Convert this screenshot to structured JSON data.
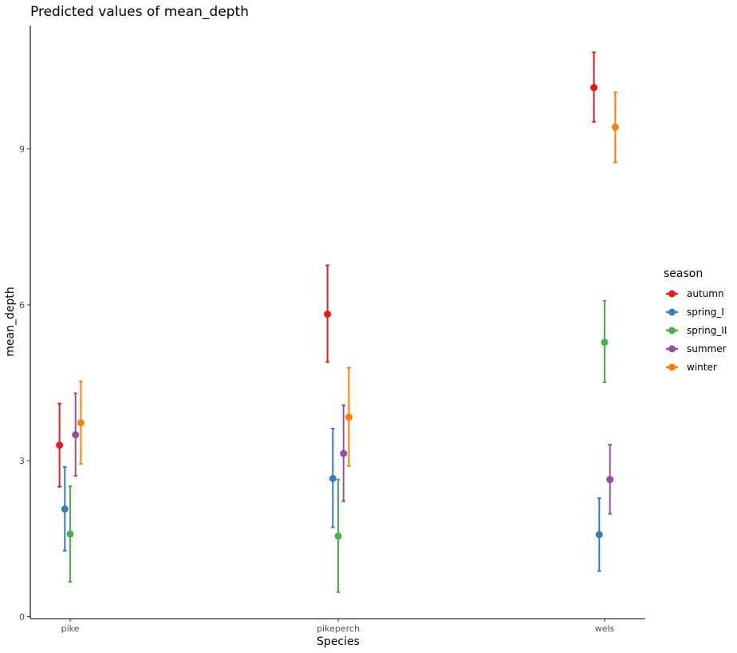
{
  "chart_data": {
    "type": "scatter",
    "subtype": "point-range (point estimates with error bars)",
    "title": "Predicted values of mean_depth",
    "xlabel": "Species",
    "ylabel": "mean_depth",
    "categories": [
      "pike",
      "pikeperch",
      "wels"
    ],
    "ylim": [
      0,
      11.5
    ],
    "yticks": [
      0,
      3,
      6,
      9
    ],
    "grid": false,
    "legend": {
      "title": "season",
      "position": "right"
    },
    "series": [
      {
        "name": "autumn",
        "color": "#E41A1C",
        "values": [
          3.3,
          5.82,
          10.18
        ],
        "lower": [
          2.5,
          4.9,
          9.52
        ],
        "upper": [
          4.1,
          6.76,
          10.86
        ]
      },
      {
        "name": "spring_I",
        "color": "#377EB8",
        "values": [
          2.07,
          2.66,
          1.58
        ],
        "lower": [
          1.27,
          1.72,
          0.88
        ],
        "upper": [
          2.88,
          3.62,
          2.28
        ]
      },
      {
        "name": "spring_II",
        "color": "#4DAF4A",
        "values": [
          1.59,
          1.55,
          5.28
        ],
        "lower": [
          0.67,
          0.47,
          4.51
        ],
        "upper": [
          2.51,
          2.64,
          6.08
        ]
      },
      {
        "name": "summer",
        "color": "#984EA3",
        "values": [
          3.5,
          3.14,
          2.64
        ],
        "lower": [
          2.71,
          2.22,
          1.98
        ],
        "upper": [
          4.3,
          4.07,
          3.31
        ]
      },
      {
        "name": "winter",
        "color": "#FF7F00",
        "values": [
          3.73,
          3.84,
          9.42
        ],
        "lower": [
          2.94,
          2.9,
          8.74
        ],
        "upper": [
          4.53,
          4.79,
          10.09
        ]
      }
    ]
  }
}
